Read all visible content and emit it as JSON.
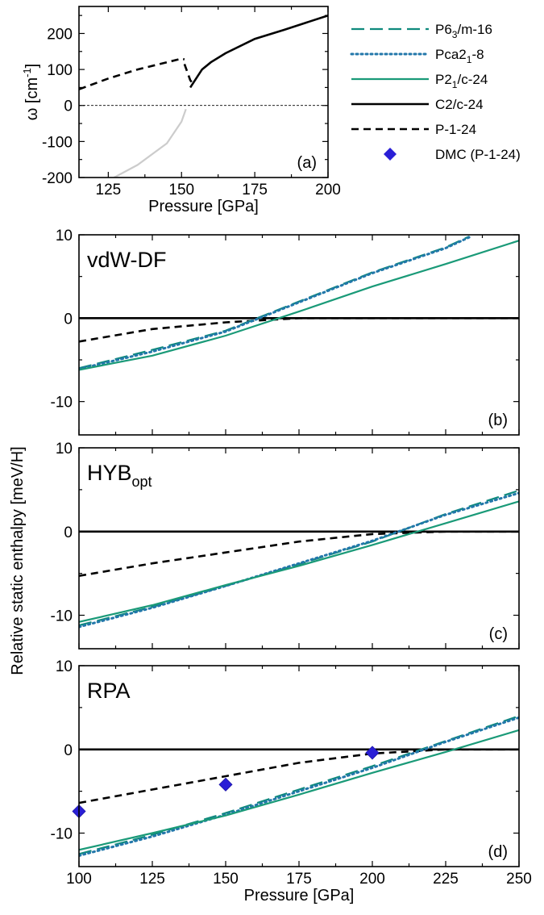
{
  "colors": {
    "p63m": "#0f8a7d",
    "pca21": "#2277aa",
    "p21c": "#1a9a78",
    "c2c": "#000000",
    "p1": "#000000",
    "dmc": "#2a1fd6",
    "unstable": "#cccccc"
  },
  "legend": [
    {
      "key": "p63m",
      "prefix": "P6",
      "sub": "3",
      "suffix": "/m-16",
      "style": "long-dash"
    },
    {
      "key": "pca21",
      "prefix": "Pca2",
      "sub": "1",
      "suffix": "-8",
      "style": "dotted"
    },
    {
      "key": "p21c",
      "prefix": "P2",
      "sub": "1",
      "suffix": "/c-24",
      "style": "solid"
    },
    {
      "key": "c2c",
      "prefix": "C2/c-24",
      "sub": "",
      "suffix": "",
      "style": "solid"
    },
    {
      "key": "p1",
      "prefix": "P-1-24",
      "sub": "",
      "suffix": "",
      "style": "dashed"
    },
    {
      "key": "dmc",
      "prefix": "DMC (P-1-24)",
      "sub": "",
      "suffix": "",
      "style": "diamond"
    }
  ],
  "chart_data": [
    {
      "panel": "a",
      "type": "line",
      "panel_label": "(a)",
      "xlabel": "Pressure [GPa]",
      "ylabel_main": "ω [cm",
      "ylabel_sup": "-1",
      "ylabel_end": "]",
      "xlim": [
        115,
        200
      ],
      "ylim": [
        -200,
        275
      ],
      "xticks": [
        125,
        150,
        175,
        200
      ],
      "yticks": [
        -200,
        -100,
        0,
        100,
        200
      ],
      "series": [
        {
          "key": "p1",
          "style": "dashed",
          "x": [
            115,
            125,
            135,
            145,
            150,
            151
          ],
          "y": [
            45,
            75,
            100,
            120,
            130,
            128
          ]
        },
        {
          "key": "p1",
          "style": "dashed",
          "x": [
            151,
            153,
            154
          ],
          "y": [
            115,
            70,
            60
          ]
        },
        {
          "key": "c2c",
          "style": "solid",
          "x": [
            153,
            157,
            160,
            165,
            175,
            185,
            200
          ],
          "y": [
            50,
            100,
            120,
            145,
            185,
            210,
            250
          ]
        },
        {
          "key": "unstable",
          "style": "solid",
          "x": [
            127,
            135,
            145,
            150,
            151.5
          ],
          "y": [
            -200,
            -165,
            -105,
            -45,
            -10
          ]
        }
      ]
    },
    {
      "panel": "b",
      "type": "line",
      "panel_label": "(b)",
      "title": "vdW-DF",
      "title_sub": "",
      "xlim": [
        100,
        250
      ],
      "ylim": [
        -14,
        10
      ],
      "yticks": [
        -10,
        0,
        10
      ],
      "series": [
        {
          "key": "c2c",
          "style": "solid",
          "x": [
            100,
            250
          ],
          "y": [
            0,
            0
          ]
        },
        {
          "key": "p1",
          "style": "dashed",
          "x": [
            100,
            125,
            150,
            175,
            200,
            225,
            250
          ],
          "y": [
            -2.8,
            -1.3,
            -0.5,
            0,
            0,
            0,
            0
          ]
        },
        {
          "key": "p63m",
          "style": "long-dash",
          "x": [
            100,
            125,
            150,
            175,
            200,
            225,
            233
          ],
          "y": [
            -6,
            -3.8,
            -1.5,
            2,
            5.5,
            8.5,
            9.8
          ]
        },
        {
          "key": "pca21",
          "style": "dotted",
          "x": [
            100,
            125,
            150,
            175,
            200,
            225,
            233
          ],
          "y": [
            -6.1,
            -4,
            -1.6,
            1.9,
            5.4,
            8.4,
            9.7
          ]
        },
        {
          "key": "p21c",
          "style": "solid",
          "x": [
            100,
            125,
            150,
            175,
            200,
            225,
            250
          ],
          "y": [
            -6.2,
            -4.5,
            -2.1,
            0.8,
            3.8,
            6.5,
            9.3
          ]
        }
      ]
    },
    {
      "panel": "c",
      "type": "line",
      "panel_label": "(c)",
      "title": "HYB",
      "title_sub": "opt",
      "xlim": [
        100,
        250
      ],
      "ylim": [
        -14,
        10
      ],
      "yticks": [
        -10,
        0,
        10
      ],
      "series": [
        {
          "key": "c2c",
          "style": "solid",
          "x": [
            100,
            250
          ],
          "y": [
            0,
            0
          ]
        },
        {
          "key": "p1",
          "style": "dashed",
          "x": [
            100,
            125,
            150,
            175,
            200,
            225,
            250
          ],
          "y": [
            -5.3,
            -3.8,
            -2.5,
            -1.2,
            -0.3,
            0,
            0
          ]
        },
        {
          "key": "p63m",
          "style": "long-dash",
          "x": [
            100,
            125,
            150,
            175,
            200,
            225,
            250
          ],
          "y": [
            -11.2,
            -9,
            -6.5,
            -3.9,
            -1.2,
            2.1,
            4.9
          ]
        },
        {
          "key": "pca21",
          "style": "dotted",
          "x": [
            100,
            125,
            150,
            175,
            200,
            225,
            250
          ],
          "y": [
            -11.4,
            -9.1,
            -6.5,
            -3.8,
            -1.1,
            2.0,
            4.6
          ]
        },
        {
          "key": "p21c",
          "style": "solid",
          "x": [
            100,
            125,
            150,
            175,
            200,
            225,
            250
          ],
          "y": [
            -10.8,
            -8.8,
            -6.4,
            -4.1,
            -1.6,
            1.0,
            3.6
          ]
        }
      ]
    },
    {
      "panel": "d",
      "type": "line",
      "panel_label": "(d)",
      "title": "RPA",
      "title_sub": "",
      "xlabel": "Pressure [GPa]",
      "xlim": [
        100,
        250
      ],
      "ylim": [
        -14,
        10
      ],
      "xticks": [
        100,
        125,
        150,
        175,
        200,
        225,
        250
      ],
      "yticks": [
        -10,
        0,
        10
      ],
      "series": [
        {
          "key": "c2c",
          "style": "solid",
          "x": [
            100,
            250
          ],
          "y": [
            0,
            0
          ]
        },
        {
          "key": "p1",
          "style": "dashed",
          "x": [
            100,
            125,
            150,
            175,
            200,
            225,
            250
          ],
          "y": [
            -6.4,
            -4.8,
            -3.2,
            -1.6,
            -0.5,
            0,
            0
          ]
        },
        {
          "key": "p63m",
          "style": "long-dash",
          "x": [
            100,
            125,
            150,
            175,
            200,
            225,
            250
          ],
          "y": [
            -12.5,
            -10.2,
            -7.6,
            -4.8,
            -2.0,
            1.0,
            4.0
          ]
        },
        {
          "key": "pca21",
          "style": "dotted",
          "x": [
            100,
            125,
            150,
            175,
            200,
            225,
            250
          ],
          "y": [
            -12.7,
            -10.4,
            -7.8,
            -5.0,
            -2.2,
            0.9,
            3.8
          ]
        },
        {
          "key": "p21c",
          "style": "solid",
          "x": [
            100,
            125,
            150,
            175,
            200,
            225,
            250
          ],
          "y": [
            -12.0,
            -10.0,
            -7.9,
            -5.4,
            -2.8,
            -0.3,
            2.3
          ]
        }
      ],
      "points": {
        "key": "dmc",
        "x": [
          100,
          150,
          200
        ],
        "y": [
          -7.4,
          -4.2,
          -0.4
        ]
      }
    }
  ],
  "shared": {
    "ylabel": "Relative static enthalpy [meV/H]"
  }
}
